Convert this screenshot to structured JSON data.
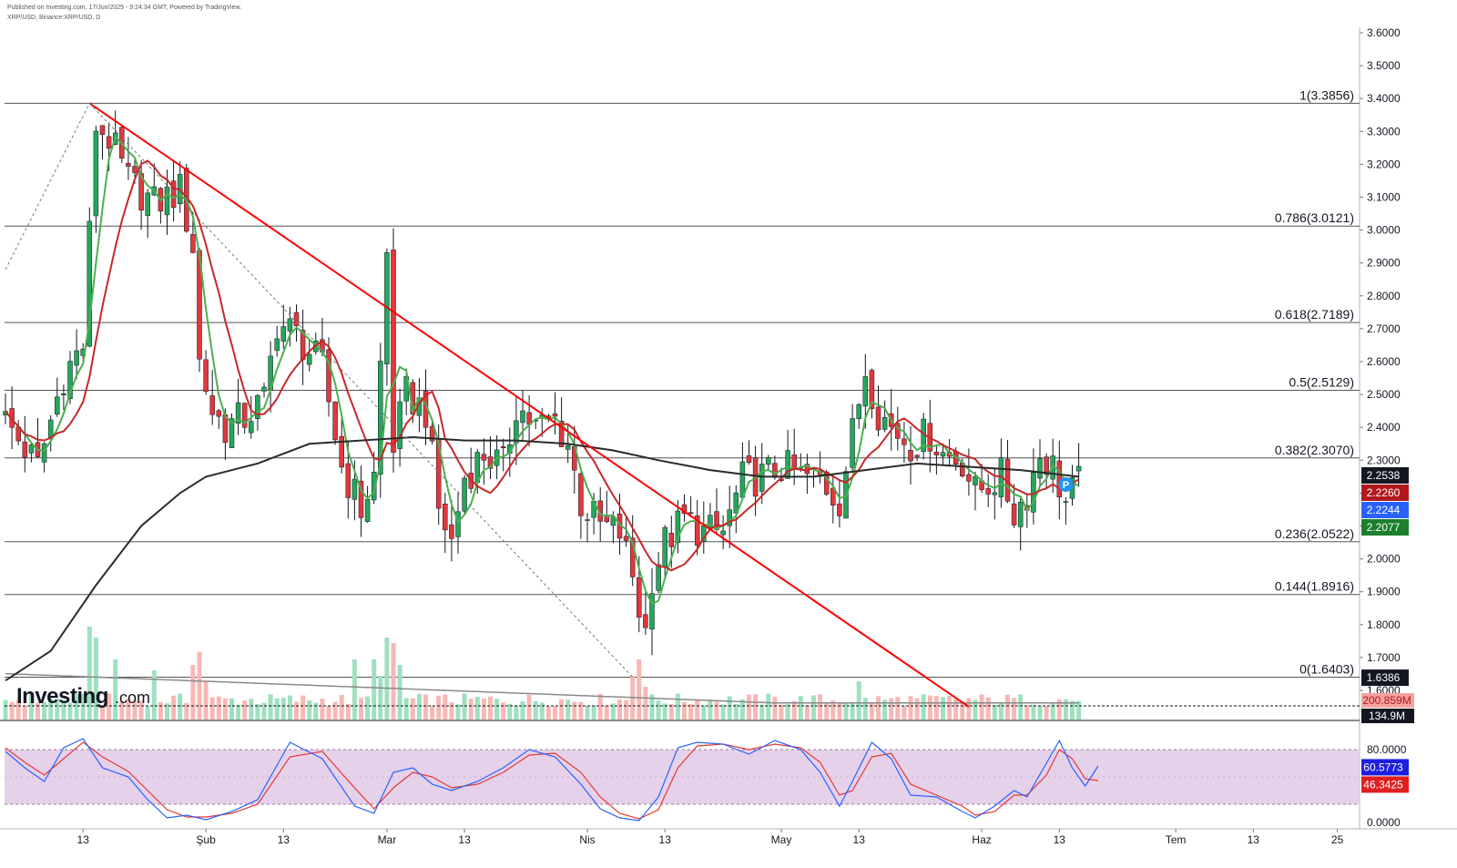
{
  "header": {
    "published": "Published on Investing.com, 17/Jun/2025 - 9:24:34 GMT, Powered by TradingView.",
    "symbol": "XRP/USD, Binance:XRP/USD, D"
  },
  "logo": {
    "main": "Investing",
    "suffix": ".com"
  },
  "price_axis": {
    "ticks": [
      "3.6000",
      "3.5000",
      "3.4000",
      "3.3000",
      "3.2000",
      "3.1000",
      "3.0000",
      "2.9000",
      "2.8000",
      "2.7000",
      "2.6000",
      "2.5000",
      "2.4000",
      "2.3000",
      "2.2000",
      "2.1000",
      "2.0000",
      "1.9000",
      "1.8000",
      "1.7000",
      "1.6000"
    ],
    "tick_values": [
      3.6,
      3.5,
      3.4,
      3.3,
      3.2,
      3.1,
      3.0,
      2.9,
      2.8,
      2.7,
      2.6,
      2.5,
      2.4,
      2.3,
      2.2,
      2.1,
      2.0,
      1.9,
      1.8,
      1.7,
      1.6
    ],
    "range": [
      1.6,
      3.6
    ]
  },
  "price_tags": [
    {
      "label": "2.2538",
      "value": 2.2538,
      "color": "#131722"
    },
    {
      "label": "2.2260",
      "value": 2.226,
      "color": "#b2181b"
    },
    {
      "label": "2.2244",
      "value": 2.2244,
      "color": "#2962ff"
    },
    {
      "label": "2.2077",
      "value": 2.2077,
      "color": "#1b7f2e"
    },
    {
      "label": "1.6386",
      "value": 1.6386,
      "color": "#131722"
    }
  ],
  "volume_tags": [
    {
      "label": "200.859M",
      "color": "#f5a3a0",
      "text_color": "#b2181b"
    },
    {
      "label": "134.9M",
      "color": "#131722",
      "text_color": "#ffffff"
    }
  ],
  "stoch_axis": {
    "ticks": [
      "80.0000",
      "0.0000"
    ],
    "tick_values": [
      80,
      0
    ],
    "tags": [
      {
        "label": "60.5773",
        "value": 60.5773,
        "color": "#1f1fe0"
      },
      {
        "label": "46.3425",
        "value": 46.3425,
        "color": "#e01f1f"
      }
    ]
  },
  "time_axis": {
    "labels": [
      "13",
      "Şub",
      "13",
      "Mar",
      "13",
      "Nis",
      "13",
      "May",
      "13",
      "Haz",
      "13",
      "Tem",
      "13",
      "25"
    ],
    "days": [
      13,
      32,
      44,
      60,
      72,
      91,
      103,
      121,
      133,
      152,
      164,
      182,
      194,
      207
    ]
  },
  "fib_levels": [
    {
      "label": "1(3.3856)",
      "value": 3.3856
    },
    {
      "label": "0.786(3.0121)",
      "value": 3.0121
    },
    {
      "label": "0.618(2.7189)",
      "value": 2.7189
    },
    {
      "label": "0.5(2.5129)",
      "value": 2.5129
    },
    {
      "label": "0.382(2.3070)",
      "value": 2.307
    },
    {
      "label": "0.236(2.0522)",
      "value": 2.0522
    },
    {
      "label": "0.144(1.8916)",
      "value": 1.8916
    },
    {
      "label": "0(1.6403)",
      "value": 1.6403
    }
  ],
  "colors": {
    "up": "#26a65b",
    "down": "#e0383e",
    "vol_up": "#9fe0bf",
    "vol_down": "#f7b8b5",
    "trendline": "#ff0000",
    "ma_fast": "#4caf50",
    "ma_mid": "#c62828",
    "ma_slow": "#2b2b2b",
    "stoch_k": "#2962ff",
    "stoch_d": "#e53935",
    "stoch_band": "#e1c9e6",
    "pivot": "#2196f3"
  },
  "chart_data": {
    "type": "candlestick",
    "title": "XRP/USD, Binance:XRP/USD, D",
    "x_unit": "day of 2025",
    "anchor_points": [
      [
        1,
        2.42
      ],
      [
        6,
        2.28
      ],
      [
        10,
        2.56
      ],
      [
        13,
        2.65
      ],
      [
        15,
        3.32
      ],
      [
        17,
        3.28
      ],
      [
        20,
        3.15
      ],
      [
        24,
        3.08
      ],
      [
        28,
        3.12
      ],
      [
        30,
        2.95
      ],
      [
        31,
        2.6
      ],
      [
        33,
        2.45
      ],
      [
        35,
        2.4
      ],
      [
        38,
        2.43
      ],
      [
        41,
        2.48
      ],
      [
        43,
        2.72
      ],
      [
        46,
        2.68
      ],
      [
        50,
        2.58
      ],
      [
        53,
        2.28
      ],
      [
        56,
        2.15
      ],
      [
        58,
        2.25
      ],
      [
        60,
        2.93
      ],
      [
        61,
        2.35
      ],
      [
        63,
        2.5
      ],
      [
        66,
        2.45
      ],
      [
        68,
        2.15
      ],
      [
        70,
        2.05
      ],
      [
        72,
        2.25
      ],
      [
        75,
        2.32
      ],
      [
        78,
        2.28
      ],
      [
        80,
        2.47
      ],
      [
        83,
        2.4
      ],
      [
        86,
        2.42
      ],
      [
        88,
        2.35
      ],
      [
        90,
        2.17
      ],
      [
        93,
        2.1
      ],
      [
        96,
        2.08
      ],
      [
        98,
        1.95
      ],
      [
        99,
        1.85
      ],
      [
        100,
        1.78
      ],
      [
        101,
        1.95
      ],
      [
        103,
        2.05
      ],
      [
        106,
        2.12
      ],
      [
        109,
        2.08
      ],
      [
        112,
        2.08
      ],
      [
        115,
        2.24
      ],
      [
        118,
        2.25
      ],
      [
        121,
        2.28
      ],
      [
        124,
        2.25
      ],
      [
        127,
        2.24
      ],
      [
        130,
        2.18
      ],
      [
        132,
        2.38
      ],
      [
        134,
        2.58
      ],
      [
        136,
        2.45
      ],
      [
        138,
        2.4
      ],
      [
        141,
        2.35
      ],
      [
        144,
        2.38
      ],
      [
        146,
        2.32
      ],
      [
        149,
        2.3
      ],
      [
        151,
        2.2
      ],
      [
        153,
        2.23
      ],
      [
        155,
        2.25
      ],
      [
        157,
        2.14
      ],
      [
        159,
        2.2
      ],
      [
        161,
        2.32
      ],
      [
        163,
        2.28
      ],
      [
        165,
        2.17
      ],
      [
        167,
        2.23
      ]
    ],
    "ma_long_points": [
      [
        1,
        1.63
      ],
      [
        8,
        1.72
      ],
      [
        15,
        1.92
      ],
      [
        22,
        2.1
      ],
      [
        28,
        2.2
      ],
      [
        32,
        2.25
      ],
      [
        40,
        2.29
      ],
      [
        48,
        2.35
      ],
      [
        56,
        2.36
      ],
      [
        64,
        2.37
      ],
      [
        72,
        2.36
      ],
      [
        80,
        2.36
      ],
      [
        88,
        2.35
      ],
      [
        95,
        2.33
      ],
      [
        102,
        2.3
      ],
      [
        110,
        2.27
      ],
      [
        118,
        2.25
      ],
      [
        126,
        2.25
      ],
      [
        134,
        2.27
      ],
      [
        142,
        2.29
      ],
      [
        150,
        2.28
      ],
      [
        158,
        2.27
      ],
      [
        167,
        2.25
      ]
    ],
    "volume_peaks": [
      [
        14,
        0.85
      ],
      [
        15,
        0.75
      ],
      [
        18,
        0.55
      ],
      [
        24,
        0.45
      ],
      [
        30,
        0.5
      ],
      [
        31,
        0.62
      ],
      [
        32,
        0.35
      ],
      [
        55,
        0.55
      ],
      [
        58,
        0.55
      ],
      [
        59,
        0.4
      ],
      [
        60,
        0.75
      ],
      [
        61,
        0.7
      ],
      [
        62,
        0.5
      ],
      [
        98,
        0.4
      ],
      [
        99,
        0.55
      ],
      [
        100,
        0.3
      ],
      [
        133,
        0.35
      ],
      [
        134,
        0.2
      ]
    ],
    "stoch_k_points": [
      [
        1,
        78
      ],
      [
        4,
        60
      ],
      [
        7,
        45
      ],
      [
        10,
        82
      ],
      [
        13,
        92
      ],
      [
        16,
        60
      ],
      [
        20,
        50
      ],
      [
        23,
        25
      ],
      [
        26,
        5
      ],
      [
        29,
        8
      ],
      [
        32,
        3
      ],
      [
        36,
        12
      ],
      [
        40,
        25
      ],
      [
        45,
        88
      ],
      [
        50,
        70
      ],
      [
        55,
        18
      ],
      [
        58,
        10
      ],
      [
        61,
        55
      ],
      [
        64,
        60
      ],
      [
        67,
        42
      ],
      [
        70,
        35
      ],
      [
        74,
        45
      ],
      [
        78,
        60
      ],
      [
        82,
        80
      ],
      [
        86,
        72
      ],
      [
        90,
        42
      ],
      [
        93,
        15
      ],
      [
        96,
        5
      ],
      [
        99,
        2
      ],
      [
        102,
        28
      ],
      [
        105,
        82
      ],
      [
        108,
        88
      ],
      [
        112,
        86
      ],
      [
        116,
        75
      ],
      [
        120,
        90
      ],
      [
        124,
        80
      ],
      [
        127,
        55
      ],
      [
        130,
        18
      ],
      [
        132,
        45
      ],
      [
        135,
        88
      ],
      [
        138,
        70
      ],
      [
        141,
        30
      ],
      [
        145,
        28
      ],
      [
        149,
        12
      ],
      [
        151,
        5
      ],
      [
        154,
        18
      ],
      [
        157,
        35
      ],
      [
        159,
        28
      ],
      [
        162,
        65
      ],
      [
        164,
        90
      ],
      [
        166,
        60
      ],
      [
        168,
        40
      ],
      [
        170,
        62
      ]
    ],
    "stoch_d_points": [
      [
        1,
        82
      ],
      [
        4,
        66
      ],
      [
        7,
        52
      ],
      [
        10,
        70
      ],
      [
        13,
        88
      ],
      [
        16,
        72
      ],
      [
        20,
        56
      ],
      [
        23,
        35
      ],
      [
        26,
        14
      ],
      [
        29,
        6
      ],
      [
        32,
        6
      ],
      [
        36,
        10
      ],
      [
        40,
        20
      ],
      [
        45,
        72
      ],
      [
        50,
        78
      ],
      [
        55,
        38
      ],
      [
        58,
        15
      ],
      [
        61,
        38
      ],
      [
        64,
        55
      ],
      [
        67,
        50
      ],
      [
        70,
        38
      ],
      [
        74,
        42
      ],
      [
        78,
        55
      ],
      [
        82,
        74
      ],
      [
        86,
        76
      ],
      [
        90,
        55
      ],
      [
        93,
        28
      ],
      [
        96,
        10
      ],
      [
        99,
        4
      ],
      [
        102,
        14
      ],
      [
        105,
        60
      ],
      [
        108,
        84
      ],
      [
        112,
        86
      ],
      [
        116,
        80
      ],
      [
        120,
        86
      ],
      [
        124,
        82
      ],
      [
        127,
        66
      ],
      [
        130,
        30
      ],
      [
        132,
        35
      ],
      [
        135,
        72
      ],
      [
        138,
        76
      ],
      [
        141,
        42
      ],
      [
        145,
        30
      ],
      [
        149,
        18
      ],
      [
        151,
        8
      ],
      [
        154,
        12
      ],
      [
        157,
        30
      ],
      [
        159,
        30
      ],
      [
        162,
        52
      ],
      [
        164,
        80
      ],
      [
        166,
        70
      ],
      [
        168,
        48
      ],
      [
        170,
        46
      ]
    ],
    "trendline": [
      [
        14,
        3.3856
      ],
      [
        150,
        1.55
      ]
    ],
    "ylim": [
      1.6,
      3.6
    ],
    "stoch_band": [
      20,
      80
    ]
  }
}
